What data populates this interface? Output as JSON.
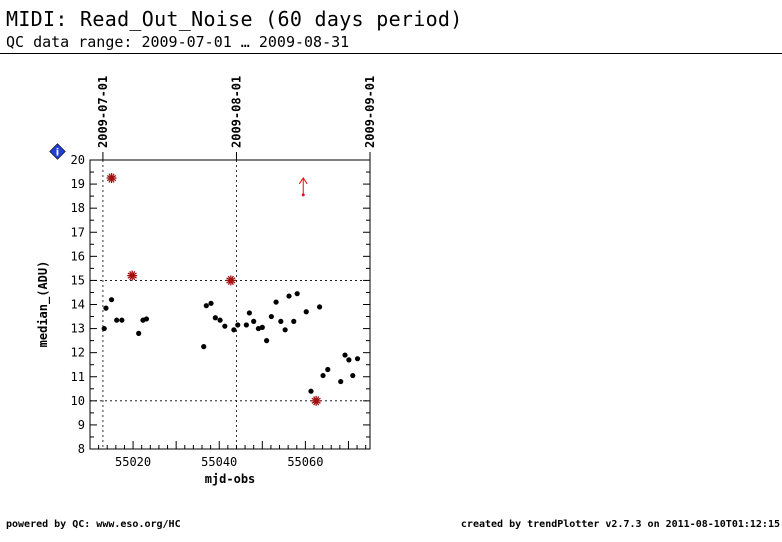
{
  "header": {
    "title": "MIDI: Read_Out_Noise (60 days period)",
    "subtitle": "QC data range: 2009-07-01 … 2009-08-31"
  },
  "footer": {
    "left": "powered by QC: www.eso.org/HC",
    "right": "created by trendPlotter v2.7.3 on 2011-08-10T01:12:15"
  },
  "info_badge": {
    "icon": "info-diamond-icon",
    "label": "i",
    "color": "#1f3fd6"
  },
  "chart_data": {
    "type": "scatter",
    "xlabel": "mjd-obs",
    "ylabel": "median_(ADU)",
    "xlim": [
      55010,
      55075
    ],
    "ylim": [
      8,
      20
    ],
    "x_ticks": [
      55020,
      55040,
      55060
    ],
    "y_ticks": [
      8,
      9,
      10,
      11,
      12,
      13,
      14,
      15,
      16,
      17,
      18,
      19,
      20
    ],
    "date_markers": [
      {
        "mjd": 55013,
        "label": "2009-07-01"
      },
      {
        "mjd": 55044,
        "label": "2009-08-01"
      },
      {
        "mjd": 55075,
        "label": "2009-09-01"
      }
    ],
    "threshold_lines": [
      10,
      15
    ],
    "marker_color": "#000000",
    "outlier_color": "#a01010",
    "arrow_color": "#e01010",
    "points": [
      {
        "x": 55013.3,
        "y": 13.0
      },
      {
        "x": 55013.7,
        "y": 13.85
      },
      {
        "x": 55015.0,
        "y": 14.2
      },
      {
        "x": 55016.2,
        "y": 13.35
      },
      {
        "x": 55017.4,
        "y": 13.35
      },
      {
        "x": 55021.3,
        "y": 12.8
      },
      {
        "x": 55022.3,
        "y": 13.35
      },
      {
        "x": 55023.1,
        "y": 13.4
      },
      {
        "x": 55036.4,
        "y": 12.25
      },
      {
        "x": 55037.0,
        "y": 13.95
      },
      {
        "x": 55038.1,
        "y": 14.05
      },
      {
        "x": 55039.1,
        "y": 13.45
      },
      {
        "x": 55040.2,
        "y": 13.35
      },
      {
        "x": 55041.3,
        "y": 13.1
      },
      {
        "x": 55043.4,
        "y": 12.95
      },
      {
        "x": 55044.3,
        "y": 13.15
      },
      {
        "x": 55046.3,
        "y": 13.15
      },
      {
        "x": 55047.0,
        "y": 13.65
      },
      {
        "x": 55048.0,
        "y": 13.3
      },
      {
        "x": 55049.1,
        "y": 13.0
      },
      {
        "x": 55050.0,
        "y": 13.05
      },
      {
        "x": 55051.0,
        "y": 12.5
      },
      {
        "x": 55052.1,
        "y": 13.5
      },
      {
        "x": 55053.2,
        "y": 14.1
      },
      {
        "x": 55054.3,
        "y": 13.3
      },
      {
        "x": 55055.3,
        "y": 12.95
      },
      {
        "x": 55056.2,
        "y": 14.35
      },
      {
        "x": 55057.3,
        "y": 13.3
      },
      {
        "x": 55058.1,
        "y": 14.45
      },
      {
        "x": 55060.2,
        "y": 13.7
      },
      {
        "x": 55061.3,
        "y": 10.4
      },
      {
        "x": 55063.3,
        "y": 13.9
      },
      {
        "x": 55064.1,
        "y": 11.05
      },
      {
        "x": 55065.2,
        "y": 11.3
      },
      {
        "x": 55068.2,
        "y": 10.8
      },
      {
        "x": 55069.2,
        "y": 11.9
      },
      {
        "x": 55070.1,
        "y": 11.7
      },
      {
        "x": 55071.0,
        "y": 11.05
      },
      {
        "x": 55072.1,
        "y": 11.75
      }
    ],
    "outliers": [
      {
        "x": 55015.0,
        "y": 19.25
      },
      {
        "x": 55019.8,
        "y": 15.2
      },
      {
        "x": 55042.7,
        "y": 15.0
      },
      {
        "x": 55062.5,
        "y": 10.0
      }
    ],
    "out_of_range": [
      {
        "x": 55059.5,
        "y": 18.55
      }
    ]
  }
}
